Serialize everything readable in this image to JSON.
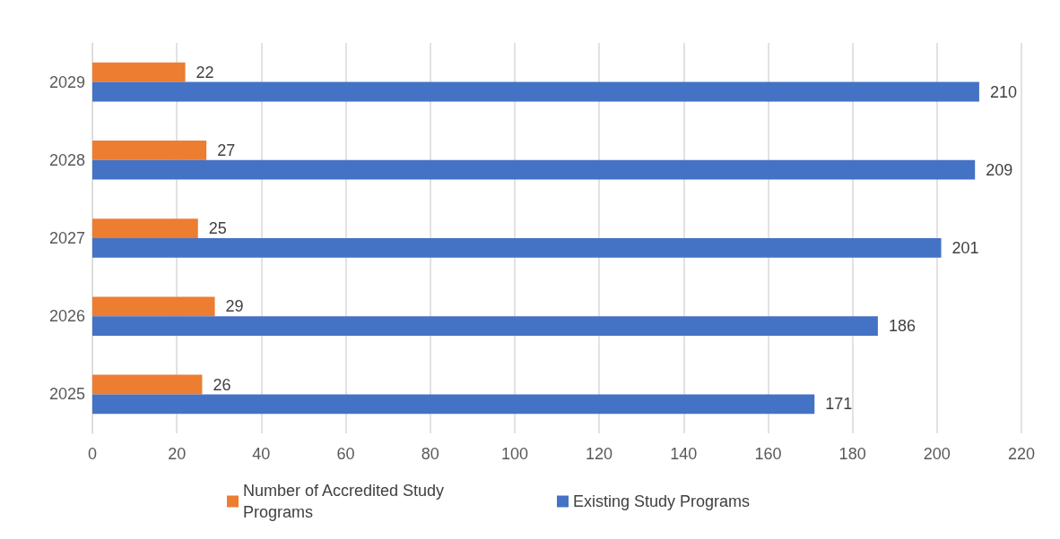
{
  "chart_data": {
    "type": "bar",
    "orientation": "horizontal",
    "categories": [
      "2029",
      "2028",
      "2027",
      "2026",
      "2025"
    ],
    "series": [
      {
        "name": "Number of Accredited Study Programs",
        "color": "#ed7d31",
        "values": [
          22,
          27,
          25,
          29,
          26
        ]
      },
      {
        "name": "Existing Study Programs",
        "color": "#4472c4",
        "values": [
          210,
          209,
          201,
          186,
          171
        ]
      }
    ],
    "xlim": [
      0,
      220
    ],
    "xticks": [
      0,
      20,
      40,
      60,
      80,
      100,
      120,
      140,
      160,
      180,
      200,
      220
    ],
    "grid": "x",
    "legend": "bottom",
    "data_labels": true
  }
}
